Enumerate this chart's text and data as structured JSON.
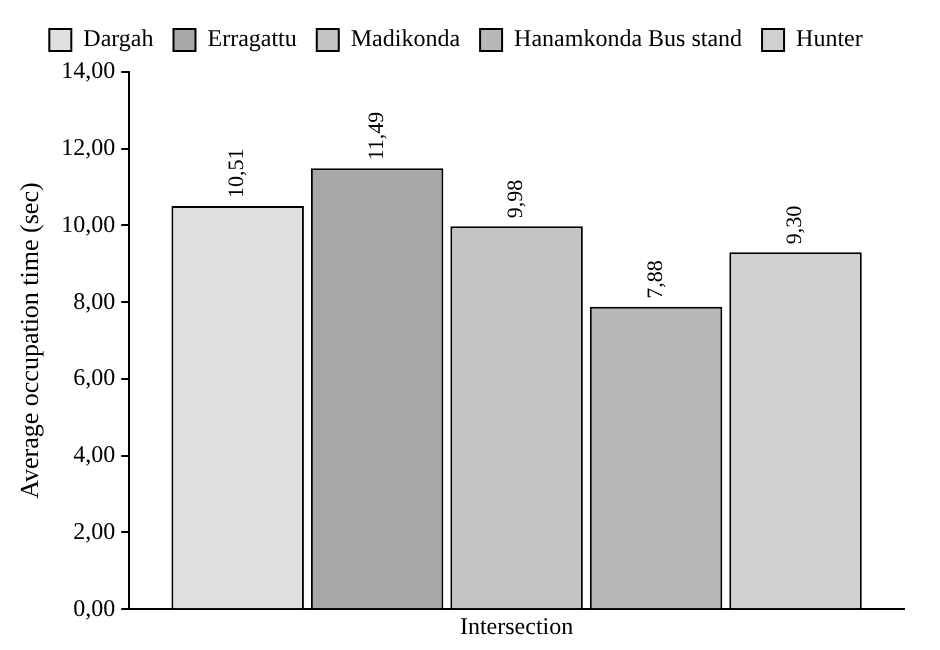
{
  "chart_data": {
    "type": "bar",
    "ylabel": "Average occupation time (sec)",
    "categories": [
      "Intersection"
    ],
    "series": [
      {
        "name": "Dargah",
        "color": "#e0e0e0",
        "values": [
          10.51
        ],
        "value_labels": [
          "10,51"
        ]
      },
      {
        "name": "Erragattu",
        "color": "#a8a8a8",
        "values": [
          11.49
        ],
        "value_labels": [
          "11,49"
        ]
      },
      {
        "name": "Madikonda",
        "color": "#c4c4c4",
        "values": [
          9.98
        ],
        "value_labels": [
          "9,98"
        ]
      },
      {
        "name": "Hanamkonda Bus stand",
        "color": "#b8b8b8",
        "values": [
          7.88
        ],
        "value_labels": [
          "7,88"
        ]
      },
      {
        "name": "Hunter",
        "color": "#d0d0d0",
        "values": [
          9.3
        ],
        "value_labels": [
          "9,30"
        ]
      }
    ],
    "ylim": [
      0,
      14
    ],
    "yticks": [
      {
        "value": 0,
        "label": "0,00"
      },
      {
        "value": 2,
        "label": "2,00"
      },
      {
        "value": 4,
        "label": "4,00"
      },
      {
        "value": 6,
        "label": "6,00"
      },
      {
        "value": 8,
        "label": "8,00"
      },
      {
        "value": 10,
        "label": "10,00"
      },
      {
        "value": 12,
        "label": "12,00"
      },
      {
        "value": 14,
        "label": "14,00"
      }
    ],
    "grid": false,
    "legend": "top"
  }
}
